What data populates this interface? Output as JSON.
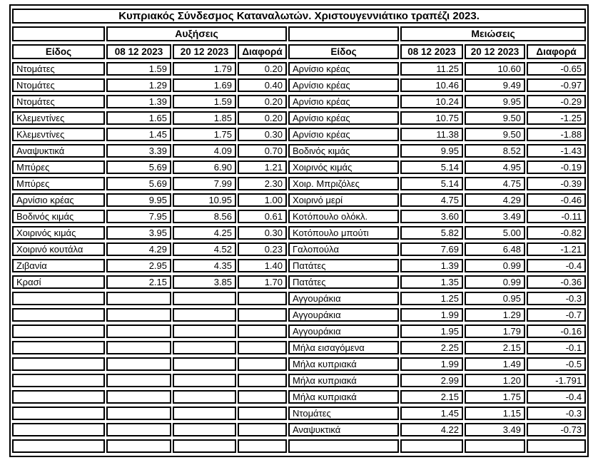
{
  "table": {
    "title": "Κυπριακός Σύνδεσμος Καταναλωτών. Χριστουγεννιάτικο τραπέζι 2023.",
    "group_headers": {
      "increases": "Αυξήσεις",
      "decreases": "Μειώσεις"
    },
    "column_headers": {
      "item": "Είδος",
      "date_before": "08 12 2023",
      "date_after": "20 12 2023",
      "diff": "Διαφορά"
    },
    "rows": [
      {
        "left": {
          "item": "Ντομάτες",
          "before": "1.59",
          "after": "1.79",
          "diff": "0.20"
        },
        "right": {
          "item": "Αρνίσιο κρέας",
          "before": "11.25",
          "after": "10.60",
          "diff": "-0.65"
        }
      },
      {
        "left": {
          "item": "Ντομάτες",
          "before": "1.29",
          "after": "1.69",
          "diff": "0.40"
        },
        "right": {
          "item": "Αρνίσιο κρέας",
          "before": "10.46",
          "after": "9.49",
          "diff": "-0.97"
        }
      },
      {
        "left": {
          "item": "Ντομάτες",
          "before": "1.39",
          "after": "1.59",
          "diff": "0.20"
        },
        "right": {
          "item": "Αρνίσιο κρέας",
          "before": "10.24",
          "after": "9.95",
          "diff": "-0.29"
        }
      },
      {
        "left": {
          "item": "Κλεμεντίνες",
          "before": "1.65",
          "after": "1.85",
          "diff": "0.20"
        },
        "right": {
          "item": "Αρνίσιο κρέας",
          "before": "10.75",
          "after": "9.50",
          "diff": "-1.25"
        }
      },
      {
        "left": {
          "item": "Κλεμεντίνες",
          "before": "1.45",
          "after": "1.75",
          "diff": "0.30"
        },
        "right": {
          "item": "Αρνίσιο κρέας",
          "before": "11.38",
          "after": "9.50",
          "diff": "-1.88"
        }
      },
      {
        "left": {
          "item": "Αναψυκτικά",
          "before": "3.39",
          "after": "4.09",
          "diff": "0.70"
        },
        "right": {
          "item": "Βοδινός κιμάς",
          "before": "9.95",
          "after": "8.52",
          "diff": "-1.43"
        }
      },
      {
        "left": {
          "item": "Μπύρες",
          "before": "5.69",
          "after": "6.90",
          "diff": "1.21"
        },
        "right": {
          "item": "Χοιρινός κιμάς",
          "before": "5.14",
          "after": "4.95",
          "diff": "-0.19"
        }
      },
      {
        "left": {
          "item": "Μπύρες",
          "before": "5.69",
          "after": "7.99",
          "diff": "2.30"
        },
        "right": {
          "item": "Χοιρ. Μπριζόλες",
          "before": "5.14",
          "after": "4.75",
          "diff": "-0.39"
        }
      },
      {
        "left": {
          "item": "Αρνίσιο κρέας",
          "before": "9.95",
          "after": "10.95",
          "diff": "1.00"
        },
        "right": {
          "item": "Χοιρινό μερί",
          "before": "4.75",
          "after": "4.29",
          "diff": "-0.46"
        }
      },
      {
        "left": {
          "item": "Βοδινός κιμάς",
          "before": "7.95",
          "after": "8.56",
          "diff": "0.61"
        },
        "right": {
          "item": "Κοτόπουλο ολόκλ.",
          "before": "3.60",
          "after": "3.49",
          "diff": "-0.11"
        }
      },
      {
        "left": {
          "item": "Χοιρινός κιμάς",
          "before": "3.95",
          "after": "4.25",
          "diff": "0.30"
        },
        "right": {
          "item": "Κοτόπουλο μπούτι",
          "before": "5.82",
          "after": "5.00",
          "diff": "-0.82"
        }
      },
      {
        "left": {
          "item": "Χοιρινό κουτάλα",
          "before": "4.29",
          "after": "4.52",
          "diff": "0.23"
        },
        "right": {
          "item": "Γαλοπούλα",
          "before": "7.69",
          "after": "6.48",
          "diff": "-1.21"
        }
      },
      {
        "left": {
          "item": "Ζιβανία",
          "before": "2.95",
          "after": "4.35",
          "diff": "1.40"
        },
        "right": {
          "item": "Πατάτες",
          "before": "1.39",
          "after": "0.99",
          "diff": "-0.4"
        }
      },
      {
        "left": {
          "item": "Κρασί",
          "before": "2.15",
          "after": "3.85",
          "diff": "1.70"
        },
        "right": {
          "item": "Πατάτες",
          "before": "1.35",
          "after": "0.99",
          "diff": "-0.36"
        }
      },
      {
        "left": {
          "item": "",
          "before": "",
          "after": "",
          "diff": ""
        },
        "right": {
          "item": "Αγγουράκια",
          "before": "1.25",
          "after": "0.95",
          "diff": "-0.3"
        }
      },
      {
        "left": {
          "item": "",
          "before": "",
          "after": "",
          "diff": ""
        },
        "right": {
          "item": "Αγγουράκια",
          "before": "1.99",
          "after": "1.29",
          "diff": "-0.7"
        }
      },
      {
        "left": {
          "item": "",
          "before": "",
          "after": "",
          "diff": ""
        },
        "right": {
          "item": "Αγγουράκια",
          "before": "1.95",
          "after": "1.79",
          "diff": "-0.16"
        }
      },
      {
        "left": {
          "item": "",
          "before": "",
          "after": "",
          "diff": ""
        },
        "right": {
          "item": "Μήλα εισαγόμενα",
          "before": "2.25",
          "after": "2.15",
          "diff": "-0.1"
        }
      },
      {
        "left": {
          "item": "",
          "before": "",
          "after": "",
          "diff": ""
        },
        "right": {
          "item": "Μήλα κυπριακά",
          "before": "1.99",
          "after": "1.49",
          "diff": "-0.5"
        }
      },
      {
        "left": {
          "item": "",
          "before": "",
          "after": "",
          "diff": ""
        },
        "right": {
          "item": "Μήλα κυπριακά",
          "before": "2.99",
          "after": "1.20",
          "diff": "-1.791"
        }
      },
      {
        "left": {
          "item": "",
          "before": "",
          "after": "",
          "diff": ""
        },
        "right": {
          "item": "Μήλα κυπριακά",
          "before": "2.15",
          "after": "1.75",
          "diff": "-0.4"
        }
      },
      {
        "left": {
          "item": "",
          "before": "",
          "after": "",
          "diff": ""
        },
        "right": {
          "item": "Ντομάτες",
          "before": "1.45",
          "after": "1.15",
          "diff": "-0.3"
        }
      },
      {
        "left": {
          "item": "",
          "before": "",
          "after": "",
          "diff": ""
        },
        "right": {
          "item": "Αναψυκτικά",
          "before": "4.22",
          "after": "3.49",
          "diff": "-0.73"
        }
      },
      {
        "left": {
          "item": "",
          "before": "",
          "after": "",
          "diff": ""
        },
        "right": {
          "item": "",
          "before": "",
          "after": "",
          "diff": ""
        }
      }
    ]
  }
}
